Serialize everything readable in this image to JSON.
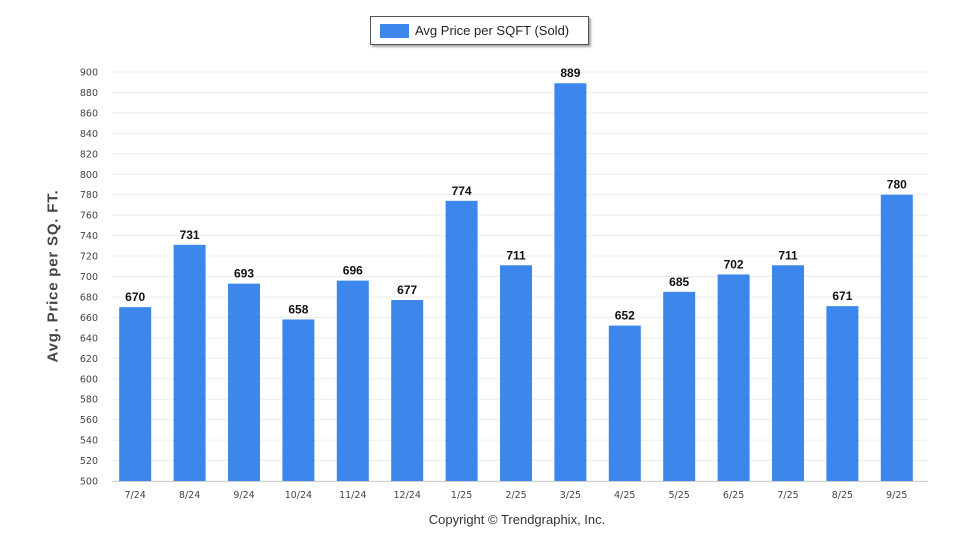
{
  "legend": {
    "label": "Avg Price per SQFT (Sold)"
  },
  "footer": {
    "copyright": "Copyright © Trendgraphix, Inc."
  },
  "colors": {
    "bar": "#3d87ec",
    "grid": "#ececec",
    "axis": "#cfcfcf"
  },
  "chart_data": {
    "type": "bar",
    "title": "",
    "xlabel": "",
    "ylabel": "Avg. Price per SQ. FT.",
    "categories": [
      "7/24",
      "8/24",
      "9/24",
      "10/24",
      "11/24",
      "12/24",
      "1/25",
      "2/25",
      "3/25",
      "4/25",
      "5/25",
      "6/25",
      "7/25",
      "8/25",
      "9/25"
    ],
    "series": [
      {
        "name": "Avg Price per SQFT (Sold)",
        "values": [
          670,
          731,
          693,
          658,
          696,
          677,
          774,
          711,
          889,
          652,
          685,
          702,
          711,
          671,
          780
        ]
      }
    ],
    "ylim": [
      500,
      900
    ],
    "yticks": [
      500,
      520,
      540,
      560,
      580,
      600,
      620,
      640,
      660,
      680,
      700,
      720,
      740,
      760,
      780,
      800,
      820,
      840,
      860,
      880,
      900
    ],
    "grid": true,
    "legend_position": "top-center",
    "data_labels": true
  }
}
